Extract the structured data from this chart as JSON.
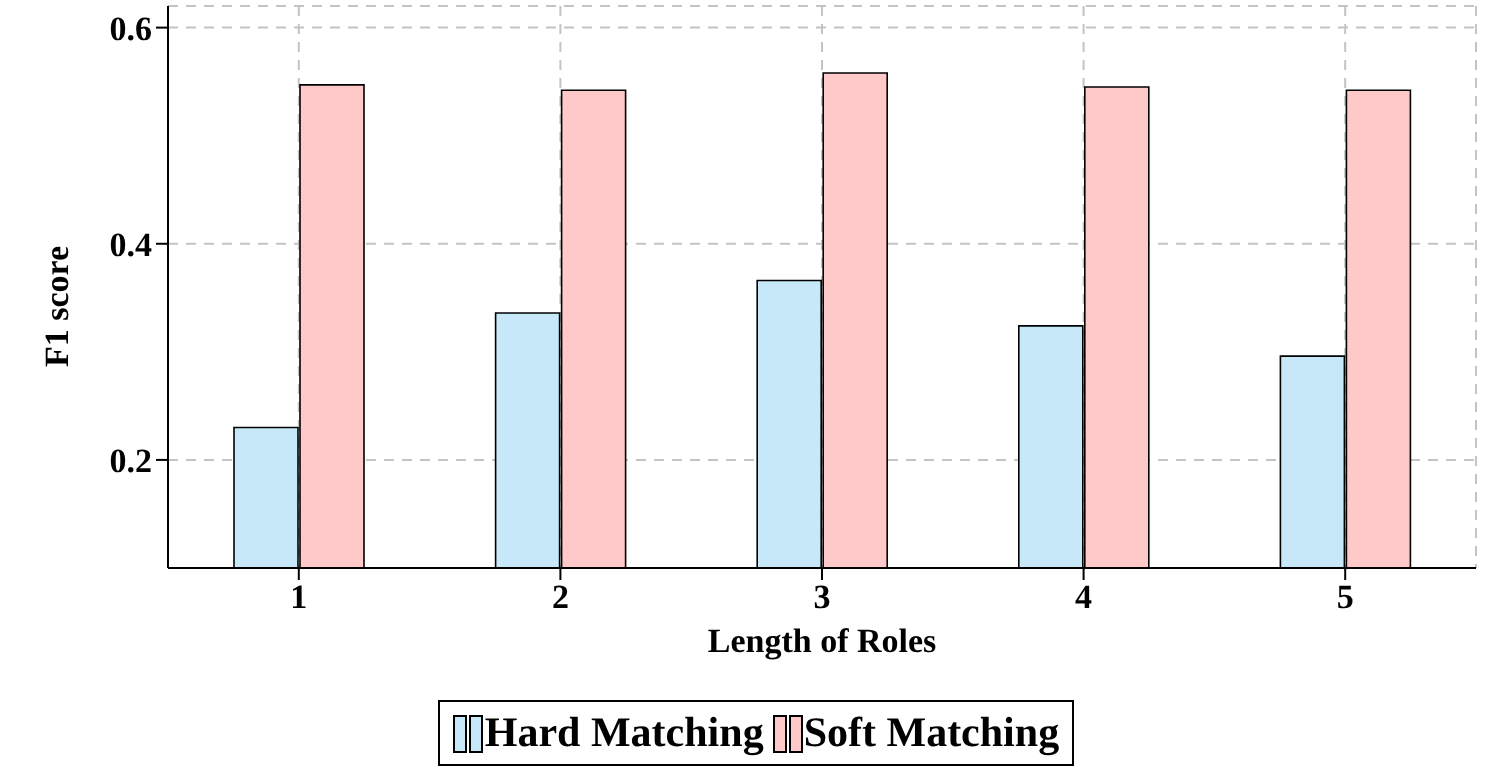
{
  "chart_data": {
    "type": "bar",
    "xlabel": "Length of Roles",
    "ylabel": "F1 score",
    "categories": [
      "1",
      "2",
      "3",
      "4",
      "5"
    ],
    "series": [
      {
        "name": "Hard Matching",
        "color": "#c6e8f8",
        "values": [
          0.23,
          0.336,
          0.366,
          0.324,
          0.296
        ]
      },
      {
        "name": "Soft Matching",
        "color": "#ffc9c9",
        "values": [
          0.547,
          0.542,
          0.558,
          0.545,
          0.542
        ]
      }
    ],
    "ylim": [
      0.1,
      0.62
    ],
    "yticks": [
      0.2,
      0.4,
      0.6
    ],
    "grid": true,
    "legend": "bottom"
  }
}
